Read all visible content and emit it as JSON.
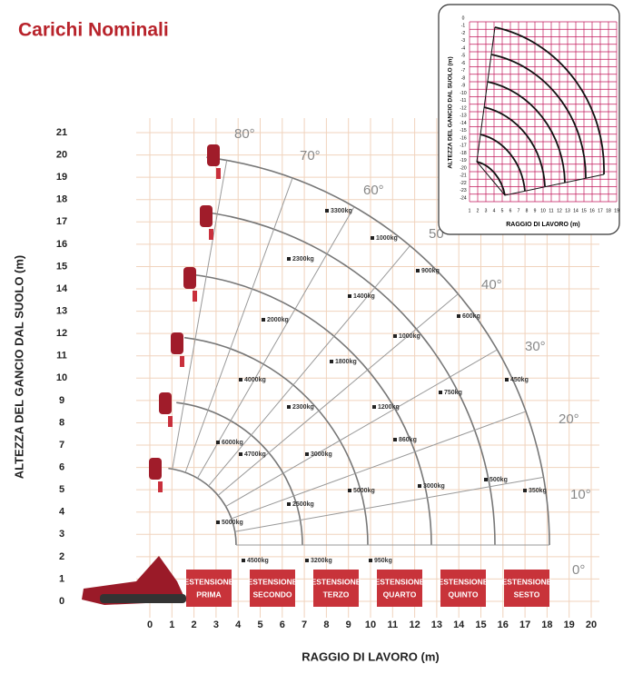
{
  "header": {
    "title": "Carichi Nominali"
  },
  "chart": {
    "y_axis_title": "ALTEZZA DEL GANCIO DAL SUOLO (m)",
    "x_axis_title": "RAGGIO DI LAVORO (m)",
    "y_ticks": [
      "0",
      "1",
      "2",
      "3",
      "4",
      "5",
      "6",
      "7",
      "8",
      "9",
      "10",
      "11",
      "12",
      "13",
      "14",
      "15",
      "16",
      "17",
      "18",
      "19",
      "20",
      "21"
    ],
    "x_ticks": [
      "0",
      "1",
      "2",
      "3",
      "4",
      "5",
      "6",
      "7",
      "8",
      "9",
      "10",
      "11",
      "12",
      "13",
      "14",
      "15",
      "16",
      "17",
      "18",
      "19",
      "20"
    ],
    "angles": [
      "80°",
      "70°",
      "60°",
      "50",
      "40°",
      "30°",
      "20°",
      "10°",
      "0°"
    ],
    "loads": [
      "3300kg",
      "1000kg",
      "900kg",
      "2300kg",
      "1400kg",
      "600kg",
      "2000kg",
      "1000kg",
      "1800kg",
      "4000kg",
      "2300kg",
      "1200kg",
      "750kg",
      "450kg",
      "6000kg",
      "4700kg",
      "3000kg",
      "860kg",
      "5000kg",
      "2500kg",
      "5000kg",
      "3000kg",
      "500kg",
      "350kg",
      "4500kg",
      "3200kg",
      "950kg"
    ],
    "extensions": [
      [
        "ESTENSIONE",
        "PRIMA"
      ],
      [
        "ESTENSIONE",
        "SECONDO"
      ],
      [
        "ESTENSIONE",
        "TERZO"
      ],
      [
        "ESTENSIONE",
        "QUARTO"
      ],
      [
        "ESTENSIONE",
        "QUINTO"
      ],
      [
        "ESTENSIONE",
        "SESTO"
      ]
    ]
  },
  "inset": {
    "y_axis_title": "ALTEZZA DEL GANCIO DAL SUOLO (m)",
    "x_axis_title": "RAGGIO DI LAVORO (m)",
    "y_ticks": [
      "0",
      "-1",
      "-2",
      "-3",
      "-4",
      "-5",
      "-6",
      "-7",
      "-8",
      "-9",
      "-10",
      "-11",
      "-12",
      "-13",
      "-14",
      "-15",
      "-16",
      "-17",
      "-18",
      "-19",
      "-20",
      "-21",
      "-22",
      "-23",
      "-24"
    ],
    "x_ticks": [
      "1",
      "2",
      "3",
      "4",
      "5",
      "6",
      "7",
      "8",
      "9",
      "10",
      "11",
      "12",
      "13",
      "14",
      "15",
      "16",
      "17",
      "18",
      "19"
    ]
  }
}
